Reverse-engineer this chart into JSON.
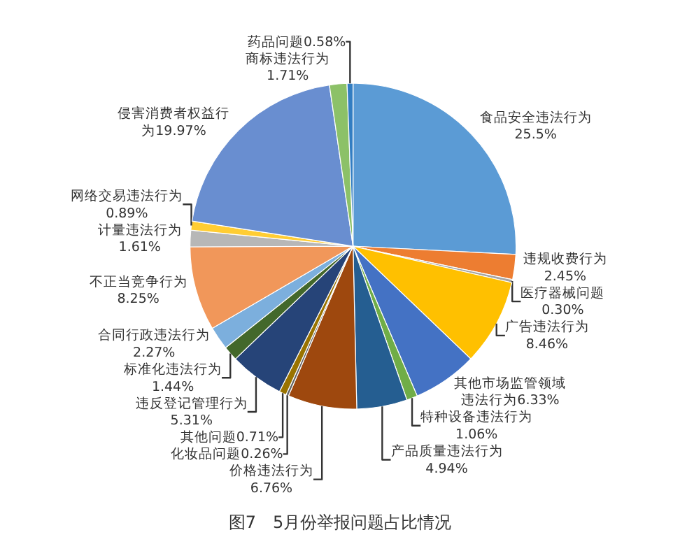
{
  "chart_data": {
    "type": "pie",
    "title": "图7　5月份举报问题占比情况",
    "categories": [
      "食品安全违法行为",
      "违规收费行为",
      "医疗器械问题",
      "广告违法行为",
      "其他市场监管领域违法行为",
      "特种设备违法行为",
      "产品质量违法行为",
      "价格违法行为",
      "化妆品问题",
      "其他问题",
      "违反登记管理行为",
      "标准化违法行为",
      "合同行政违法行为",
      "不正当竞争行为",
      "计量违法行为",
      "网络交易违法行为",
      "侵害消费者权益行为",
      "商标违法行为",
      "药品问题"
    ],
    "values": [
      25.5,
      2.45,
      0.3,
      8.46,
      6.33,
      1.06,
      4.94,
      6.76,
      0.26,
      0.71,
      5.31,
      1.44,
      2.27,
      8.25,
      1.61,
      0.89,
      19.97,
      1.71,
      0.58
    ],
    "value_labels": [
      "25.5%",
      "2.45%",
      "0.30%",
      "8.46%",
      "6.33%",
      "1.06%",
      "4.94%",
      "6.76%",
      "0.26%",
      "0.71%",
      "5.31%",
      "1.44%",
      "2.27%",
      "8.25%",
      "1.61%",
      "0.89%",
      "19.97%",
      "1.71%",
      "0.58%"
    ],
    "colors": [
      "#5b9bd5",
      "#ed7d31",
      "#a5a5a5",
      "#ffc000",
      "#4472c4",
      "#70ad47",
      "#255e91",
      "#9e480e",
      "#636363",
      "#997300",
      "#264478",
      "#43682b",
      "#7cafdd",
      "#f1975a",
      "#b7b7b7",
      "#ffcd33",
      "#698ed0",
      "#8cc168",
      "#327dc2"
    ],
    "legend": false
  }
}
